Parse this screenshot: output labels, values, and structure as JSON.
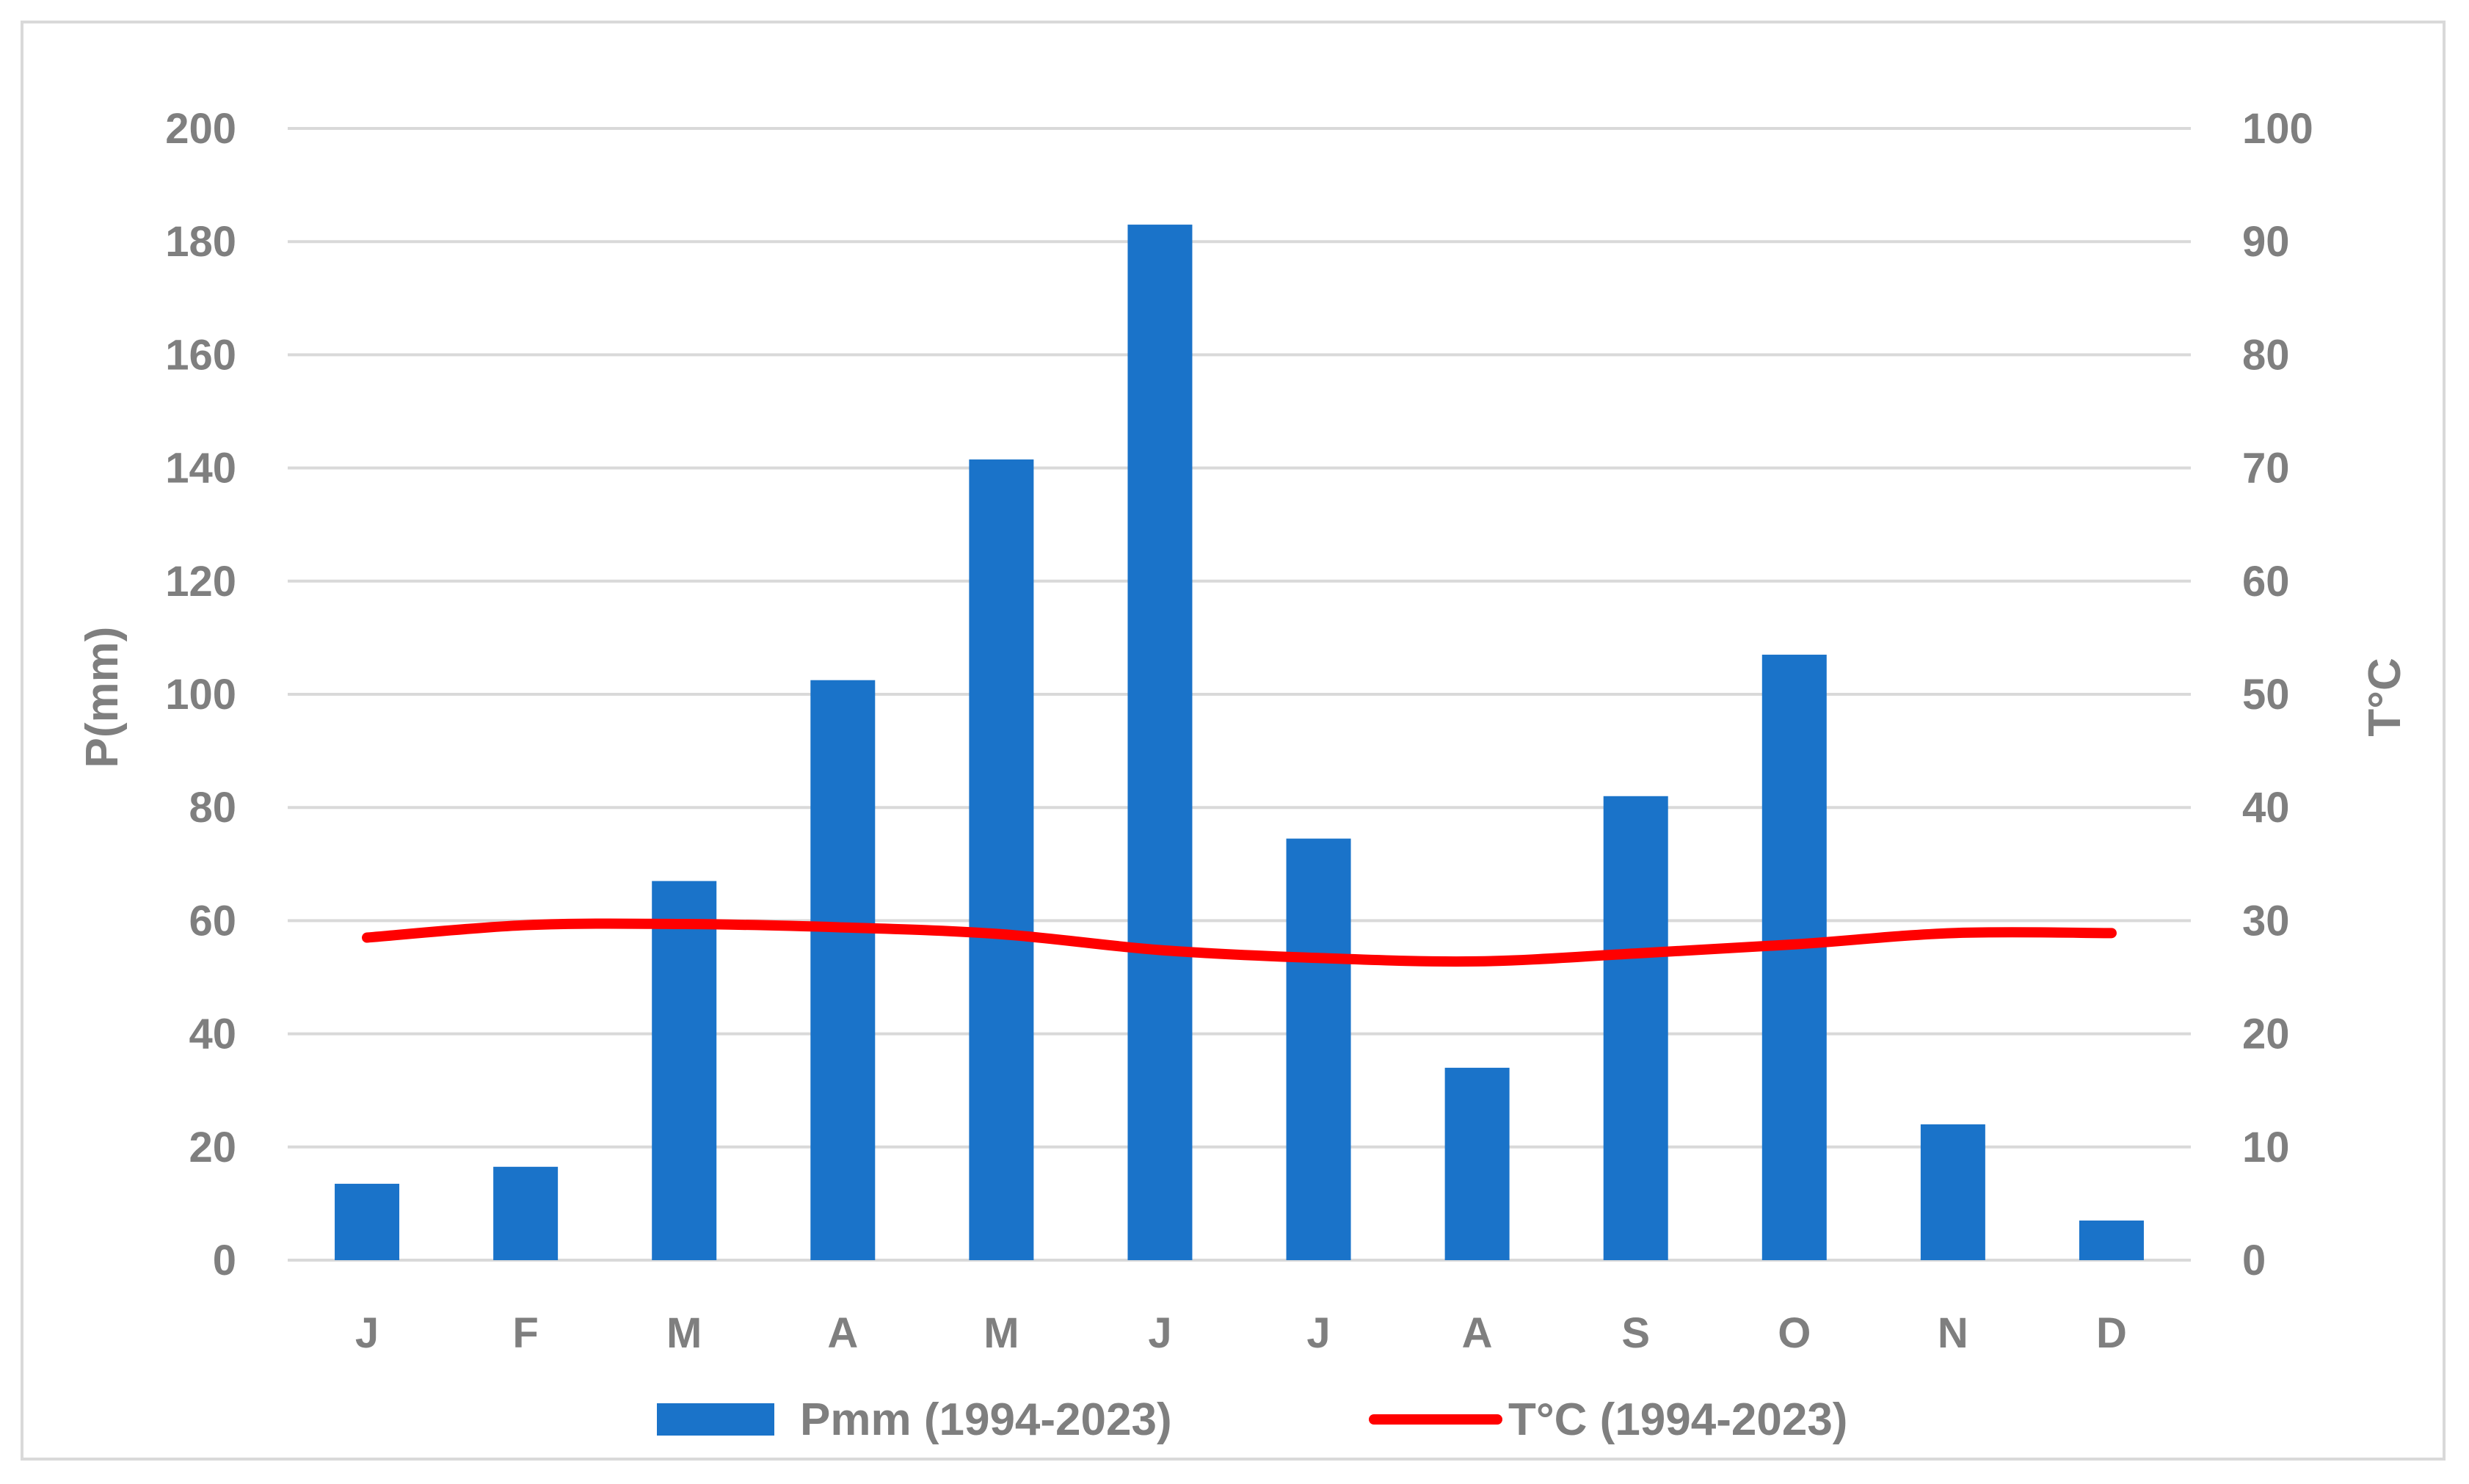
{
  "chart_data": {
    "type": "bar+line",
    "categories": [
      "J",
      "F",
      "M",
      "A",
      "M",
      "J",
      "J",
      "A",
      "S",
      "O",
      "N",
      "D"
    ],
    "series": [
      {
        "name": "Pmm (1994-2023)",
        "type": "bar",
        "axis": "left",
        "color": "#1a73c9",
        "values": [
          13.5,
          16.5,
          67,
          102.5,
          141.5,
          183,
          74.5,
          34,
          82,
          107,
          24,
          7
        ]
      },
      {
        "name": "T°C (1994-2023)",
        "type": "line",
        "axis": "right",
        "color": "#ff0000",
        "values": [
          28.5,
          29.6,
          29.7,
          29.4,
          28.8,
          27.4,
          26.7,
          26.4,
          27.1,
          27.9,
          28.9,
          28.9
        ]
      }
    ],
    "ylabel": "P(mm)",
    "y2label": "T°C",
    "ylim": [
      0,
      200
    ],
    "y2lim": [
      0,
      100
    ],
    "yticks": [
      "0",
      "20",
      "40",
      "60",
      "80",
      "100",
      "120",
      "140",
      "160",
      "180",
      "200"
    ],
    "y2ticks": [
      "0",
      "10",
      "20",
      "30",
      "40",
      "50",
      "60",
      "70",
      "80",
      "90",
      "100"
    ],
    "grid": true,
    "legend_position": "bottom"
  }
}
